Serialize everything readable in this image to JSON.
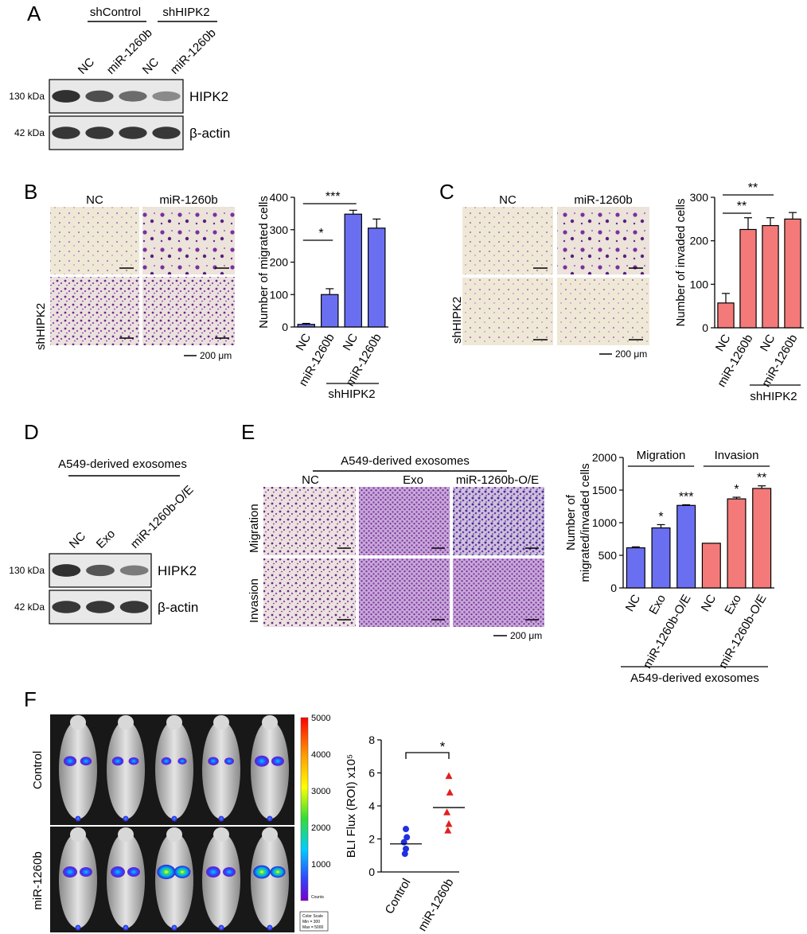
{
  "panelA": {
    "letter": "A",
    "group_labels": [
      "shControl",
      "shHIPK2"
    ],
    "lanes": [
      "NC",
      "miR-1260b",
      "NC",
      "miR-1260b"
    ],
    "blots": [
      {
        "kda": "130 kDa",
        "protein": "HIPK2",
        "intensities": [
          0.95,
          0.75,
          0.55,
          0.35
        ]
      },
      {
        "kda": "42 kDa",
        "protein": "β-actin",
        "intensities": [
          0.9,
          0.9,
          0.9,
          0.9
        ]
      }
    ]
  },
  "panelB": {
    "letter": "B",
    "image_cols": [
      "NC",
      "miR-1260b"
    ],
    "row_label": "shHIPK2",
    "scale_bar": "200 μm"
  },
  "panelC": {
    "letter": "C",
    "image_cols": [
      "NC",
      "miR-1260b"
    ],
    "row_label": "shHIPK2",
    "scale_bar": "200 μm"
  },
  "panelD": {
    "letter": "D",
    "header": "A549-derived exosomes",
    "lanes": [
      "NC",
      "Exo",
      "miR-1260b-O/E"
    ],
    "blots": [
      {
        "kda": "130 kDa",
        "protein": "HIPK2",
        "intensities": [
          0.95,
          0.7,
          0.45
        ]
      },
      {
        "kda": "42 kDa",
        "protein": "β-actin",
        "intensities": [
          0.9,
          0.9,
          0.9
        ]
      }
    ]
  },
  "panelE": {
    "letter": "E",
    "header": "A549-derived exosomes",
    "image_cols": [
      "NC",
      "Exo",
      "miR-1260b-O/E"
    ],
    "row_labels": [
      "Migration",
      "Invasion"
    ],
    "scale_bar": "200 μm"
  },
  "panelF": {
    "letter": "F",
    "row_labels": [
      "Control",
      "miR-1260b"
    ],
    "colorbar_ticks": [
      "5000",
      "4000",
      "3000",
      "2000",
      "1000"
    ],
    "colorbar_unit": "Counts",
    "color_scale_lines": [
      "Color Scale",
      "Min = 300",
      "Max = 5000"
    ]
  },
  "chart_data": [
    {
      "id": "B",
      "type": "bar",
      "categories": [
        "NC",
        "miR-1260b",
        "NC",
        "miR-1260b"
      ],
      "values": [
        8,
        100,
        348,
        305
      ],
      "errors": [
        3,
        18,
        12,
        28
      ],
      "ylabel": "Number of migrated cells",
      "ylim": [
        0,
        400
      ],
      "yticks": [
        0,
        100,
        200,
        300,
        400
      ],
      "color": "#6a6ff2",
      "group_label": "shHIPK2",
      "significance": [
        {
          "from": 0,
          "to": 1,
          "label": "*"
        },
        {
          "from": 0,
          "to": 2,
          "label": "***"
        }
      ]
    },
    {
      "id": "C",
      "type": "bar",
      "categories": [
        "NC",
        "miR-1260b",
        "NC",
        "miR-1260b"
      ],
      "values": [
        57,
        226,
        235,
        250
      ],
      "errors": [
        22,
        27,
        18,
        15
      ],
      "ylabel": "Number of invaded cells",
      "ylim": [
        0,
        300
      ],
      "yticks": [
        0,
        100,
        200,
        300
      ],
      "color": "#f47a7a",
      "group_label": "shHIPK2",
      "significance": [
        {
          "from": 0,
          "to": 1,
          "label": "**"
        },
        {
          "from": 0,
          "to": 2,
          "label": "**"
        }
      ]
    },
    {
      "id": "E",
      "type": "bar",
      "categories": [
        "NC",
        "Exo",
        "miR-1260b-O/E",
        "NC",
        "Exo",
        "miR-1260b-O/E"
      ],
      "values": [
        615,
        920,
        1265,
        685,
        1365,
        1525
      ],
      "errors": [
        15,
        50,
        10,
        0,
        25,
        40
      ],
      "colors": [
        "#6a6ff2",
        "#6a6ff2",
        "#6a6ff2",
        "#f47a7a",
        "#f47a7a",
        "#f47a7a"
      ],
      "stars": [
        "",
        "*",
        "***",
        "",
        "*",
        "**"
      ],
      "ylabel_lines": [
        "Number of",
        "migrated/invaded cells"
      ],
      "ylim": [
        0,
        2000
      ],
      "yticks": [
        0,
        500,
        1000,
        1500,
        2000
      ],
      "group_headers": [
        "Migration",
        "Invasion"
      ],
      "footer_label": "A549-derived exosomes"
    },
    {
      "id": "F",
      "type": "scatter",
      "categories": [
        "Control",
        "miR-1260b"
      ],
      "series": [
        {
          "name": "Control",
          "values": [
            2.6,
            2.1,
            1.8,
            1.4,
            1.1
          ],
          "color": "#2030e0",
          "marker": "circle",
          "mean": 1.7
        },
        {
          "name": "miR-1260b",
          "values": [
            5.8,
            4.8,
            3.6,
            2.9,
            2.5
          ],
          "color": "#e02020",
          "marker": "triangle",
          "mean": 3.9
        }
      ],
      "ylabel": "BLI Flux (ROI) x10⁵",
      "ylim": [
        0,
        8
      ],
      "yticks": [
        0,
        2,
        4,
        6,
        8
      ],
      "significance": [
        {
          "from": 0,
          "to": 1,
          "label": "*"
        }
      ]
    }
  ]
}
